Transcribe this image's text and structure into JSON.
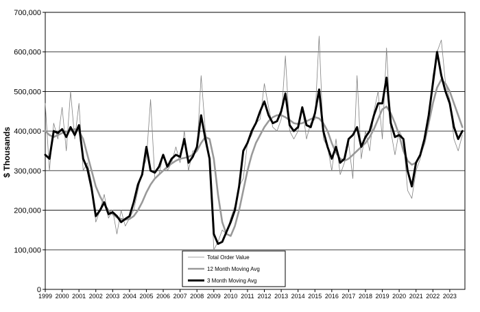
{
  "chart_data": {
    "type": "line",
    "title": "",
    "xlabel": "",
    "ylabel": "$ Thousands",
    "ylim": [
      0,
      700000
    ],
    "xlim": [
      1999,
      2023.9
    ],
    "grid": "horizontal",
    "legend_placement": "bottom-center",
    "y_ticks": [
      "0",
      "100,000",
      "200,000",
      "300,000",
      "400,000",
      "500,000",
      "600,000",
      "700,000"
    ],
    "x_ticks": [
      "1999",
      "2000",
      "2001",
      "2002",
      "2003",
      "2004",
      "2005",
      "2006",
      "2007",
      "2008",
      "2009",
      "2010",
      "2011",
      "2012",
      "2013",
      "2014",
      "2015",
      "2016",
      "2017",
      "2018",
      "2019",
      "2020",
      "2021",
      "2022",
      "2023"
    ],
    "series": [
      {
        "name": "Total Order Value",
        "color": "#808080",
        "style": "thin",
        "x": [
          1999.0,
          1999.25,
          1999.5,
          1999.75,
          2000.0,
          2000.25,
          2000.5,
          2000.75,
          2001.0,
          2001.25,
          2001.5,
          2001.75,
          2002.0,
          2002.25,
          2002.5,
          2002.75,
          2003.0,
          2003.25,
          2003.5,
          2003.75,
          2004.0,
          2004.25,
          2004.5,
          2004.75,
          2005.0,
          2005.25,
          2005.5,
          2005.75,
          2006.0,
          2006.25,
          2006.5,
          2006.75,
          2007.0,
          2007.25,
          2007.5,
          2007.75,
          2008.0,
          2008.25,
          2008.5,
          2008.75,
          2009.0,
          2009.25,
          2009.5,
          2009.75,
          2010.0,
          2010.25,
          2010.5,
          2010.75,
          2011.0,
          2011.25,
          2011.5,
          2011.75,
          2012.0,
          2012.25,
          2012.5,
          2012.75,
          2013.0,
          2013.25,
          2013.5,
          2013.75,
          2014.0,
          2014.25,
          2014.5,
          2014.75,
          2015.0,
          2015.25,
          2015.5,
          2015.75,
          2016.0,
          2016.25,
          2016.5,
          2016.75,
          2017.0,
          2017.25,
          2017.5,
          2017.75,
          2018.0,
          2018.25,
          2018.5,
          2018.75,
          2019.0,
          2019.25,
          2019.5,
          2019.75,
          2020.0,
          2020.25,
          2020.5,
          2020.75,
          2021.0,
          2021.25,
          2021.5,
          2021.75,
          2022.0,
          2022.25,
          2022.5,
          2022.75,
          2023.0,
          2023.25,
          2023.5,
          2023.75
        ],
        "values": [
          470000,
          300000,
          420000,
          380000,
          460000,
          350000,
          500000,
          380000,
          470000,
          300000,
          320000,
          270000,
          170000,
          200000,
          240000,
          180000,
          200000,
          140000,
          200000,
          160000,
          180000,
          200000,
          250000,
          300000,
          330000,
          480000,
          280000,
          290000,
          340000,
          300000,
          320000,
          360000,
          320000,
          400000,
          300000,
          350000,
          350000,
          540000,
          400000,
          330000,
          100000,
          120000,
          150000,
          140000,
          180000,
          210000,
          260000,
          280000,
          370000,
          390000,
          420000,
          430000,
          520000,
          460000,
          410000,
          400000,
          430000,
          590000,
          400000,
          380000,
          400000,
          460000,
          380000,
          420000,
          430000,
          640000,
          380000,
          360000,
          300000,
          380000,
          290000,
          320000,
          370000,
          280000,
          540000,
          330000,
          400000,
          350000,
          450000,
          500000,
          380000,
          610000,
          400000,
          340000,
          400000,
          380000,
          250000,
          230000,
          300000,
          330000,
          380000,
          440000,
          540000,
          600000,
          630000,
          520000,
          480000,
          380000,
          350000,
          390000
        ]
      },
      {
        "name": "12 Month Moving Avg",
        "color": "#999999",
        "style": "medium",
        "x": [
          1999.0,
          1999.25,
          1999.5,
          1999.75,
          2000.0,
          2000.25,
          2000.5,
          2000.75,
          2001.0,
          2001.25,
          2001.5,
          2001.75,
          2002.0,
          2002.25,
          2002.5,
          2002.75,
          2003.0,
          2003.25,
          2003.5,
          2003.75,
          2004.0,
          2004.25,
          2004.5,
          2004.75,
          2005.0,
          2005.25,
          2005.5,
          2005.75,
          2006.0,
          2006.25,
          2006.5,
          2006.75,
          2007.0,
          2007.25,
          2007.5,
          2007.75,
          2008.0,
          2008.25,
          2008.5,
          2008.75,
          2009.0,
          2009.25,
          2009.5,
          2009.75,
          2010.0,
          2010.25,
          2010.5,
          2010.75,
          2011.0,
          2011.25,
          2011.5,
          2011.75,
          2012.0,
          2012.25,
          2012.5,
          2012.75,
          2013.0,
          2013.25,
          2013.5,
          2013.75,
          2014.0,
          2014.25,
          2014.5,
          2014.75,
          2015.0,
          2015.25,
          2015.5,
          2015.75,
          2016.0,
          2016.25,
          2016.5,
          2016.75,
          2017.0,
          2017.25,
          2017.5,
          2017.75,
          2018.0,
          2018.25,
          2018.5,
          2018.75,
          2019.0,
          2019.25,
          2019.5,
          2019.75,
          2020.0,
          2020.25,
          2020.5,
          2020.75,
          2021.0,
          2021.25,
          2021.5,
          2021.75,
          2022.0,
          2022.25,
          2022.5,
          2022.75,
          2023.0,
          2023.25,
          2023.5,
          2023.75
        ],
        "values": [
          400000,
          390000,
          385000,
          390000,
          395000,
          398000,
          402000,
          405000,
          400000,
          380000,
          340000,
          300000,
          260000,
          235000,
          215000,
          200000,
          190000,
          182000,
          178000,
          176000,
          178000,
          185000,
          200000,
          220000,
          245000,
          265000,
          280000,
          290000,
          300000,
          310000,
          318000,
          325000,
          330000,
          332000,
          335000,
          340000,
          350000,
          370000,
          385000,
          380000,
          330000,
          240000,
          170000,
          140000,
          135000,
          160000,
          200000,
          250000,
          300000,
          340000,
          370000,
          390000,
          410000,
          425000,
          435000,
          440000,
          440000,
          435000,
          428000,
          420000,
          418000,
          420000,
          425000,
          430000,
          435000,
          432000,
          420000,
          400000,
          370000,
          345000,
          330000,
          325000,
          330000,
          340000,
          350000,
          360000,
          370000,
          385000,
          405000,
          430000,
          455000,
          462000,
          445000,
          420000,
          390000,
          350000,
          325000,
          315000,
          320000,
          340000,
          370000,
          420000,
          470000,
          510000,
          530000,
          520000,
          500000,
          470000,
          440000,
          410000
        ]
      },
      {
        "name": "3 Month Moving Avg",
        "color": "#000000",
        "style": "thick",
        "x": [
          1999.0,
          1999.25,
          1999.5,
          1999.75,
          2000.0,
          2000.25,
          2000.5,
          2000.75,
          2001.0,
          2001.25,
          2001.5,
          2001.75,
          2002.0,
          2002.25,
          2002.5,
          2002.75,
          2003.0,
          2003.25,
          2003.5,
          2003.75,
          2004.0,
          2004.25,
          2004.5,
          2004.75,
          2005.0,
          2005.25,
          2005.5,
          2005.75,
          2006.0,
          2006.25,
          2006.5,
          2006.75,
          2007.0,
          2007.25,
          2007.5,
          2007.75,
          2008.0,
          2008.25,
          2008.5,
          2008.75,
          2009.0,
          2009.25,
          2009.5,
          2009.75,
          2010.0,
          2010.25,
          2010.5,
          2010.75,
          2011.0,
          2011.25,
          2011.5,
          2011.75,
          2012.0,
          2012.25,
          2012.5,
          2012.75,
          2013.0,
          2013.25,
          2013.5,
          2013.75,
          2014.0,
          2014.25,
          2014.5,
          2014.75,
          2015.0,
          2015.25,
          2015.5,
          2015.75,
          2016.0,
          2016.25,
          2016.5,
          2016.75,
          2017.0,
          2017.25,
          2017.5,
          2017.75,
          2018.0,
          2018.25,
          2018.5,
          2018.75,
          2019.0,
          2019.25,
          2019.5,
          2019.75,
          2020.0,
          2020.25,
          2020.5,
          2020.75,
          2021.0,
          2021.25,
          2021.5,
          2021.75,
          2022.0,
          2022.25,
          2022.5,
          2022.75,
          2023.0,
          2023.25,
          2023.5,
          2023.75
        ],
        "values": [
          340000,
          330000,
          400000,
          395000,
          405000,
          385000,
          410000,
          390000,
          415000,
          330000,
          305000,
          255000,
          185000,
          200000,
          220000,
          190000,
          195000,
          185000,
          170000,
          178000,
          185000,
          220000,
          265000,
          290000,
          360000,
          300000,
          295000,
          310000,
          340000,
          310000,
          330000,
          340000,
          335000,
          380000,
          320000,
          335000,
          360000,
          440000,
          380000,
          330000,
          140000,
          115000,
          120000,
          145000,
          170000,
          200000,
          260000,
          350000,
          370000,
          400000,
          420000,
          450000,
          475000,
          440000,
          420000,
          425000,
          450000,
          495000,
          415000,
          400000,
          410000,
          460000,
          415000,
          410000,
          445000,
          505000,
          400000,
          360000,
          330000,
          360000,
          320000,
          330000,
          380000,
          390000,
          410000,
          360000,
          385000,
          400000,
          440000,
          470000,
          470000,
          535000,
          420000,
          385000,
          390000,
          380000,
          300000,
          260000,
          320000,
          340000,
          380000,
          440000,
          520000,
          600000,
          540000,
          500000,
          470000,
          410000,
          380000,
          400000
        ]
      }
    ]
  }
}
